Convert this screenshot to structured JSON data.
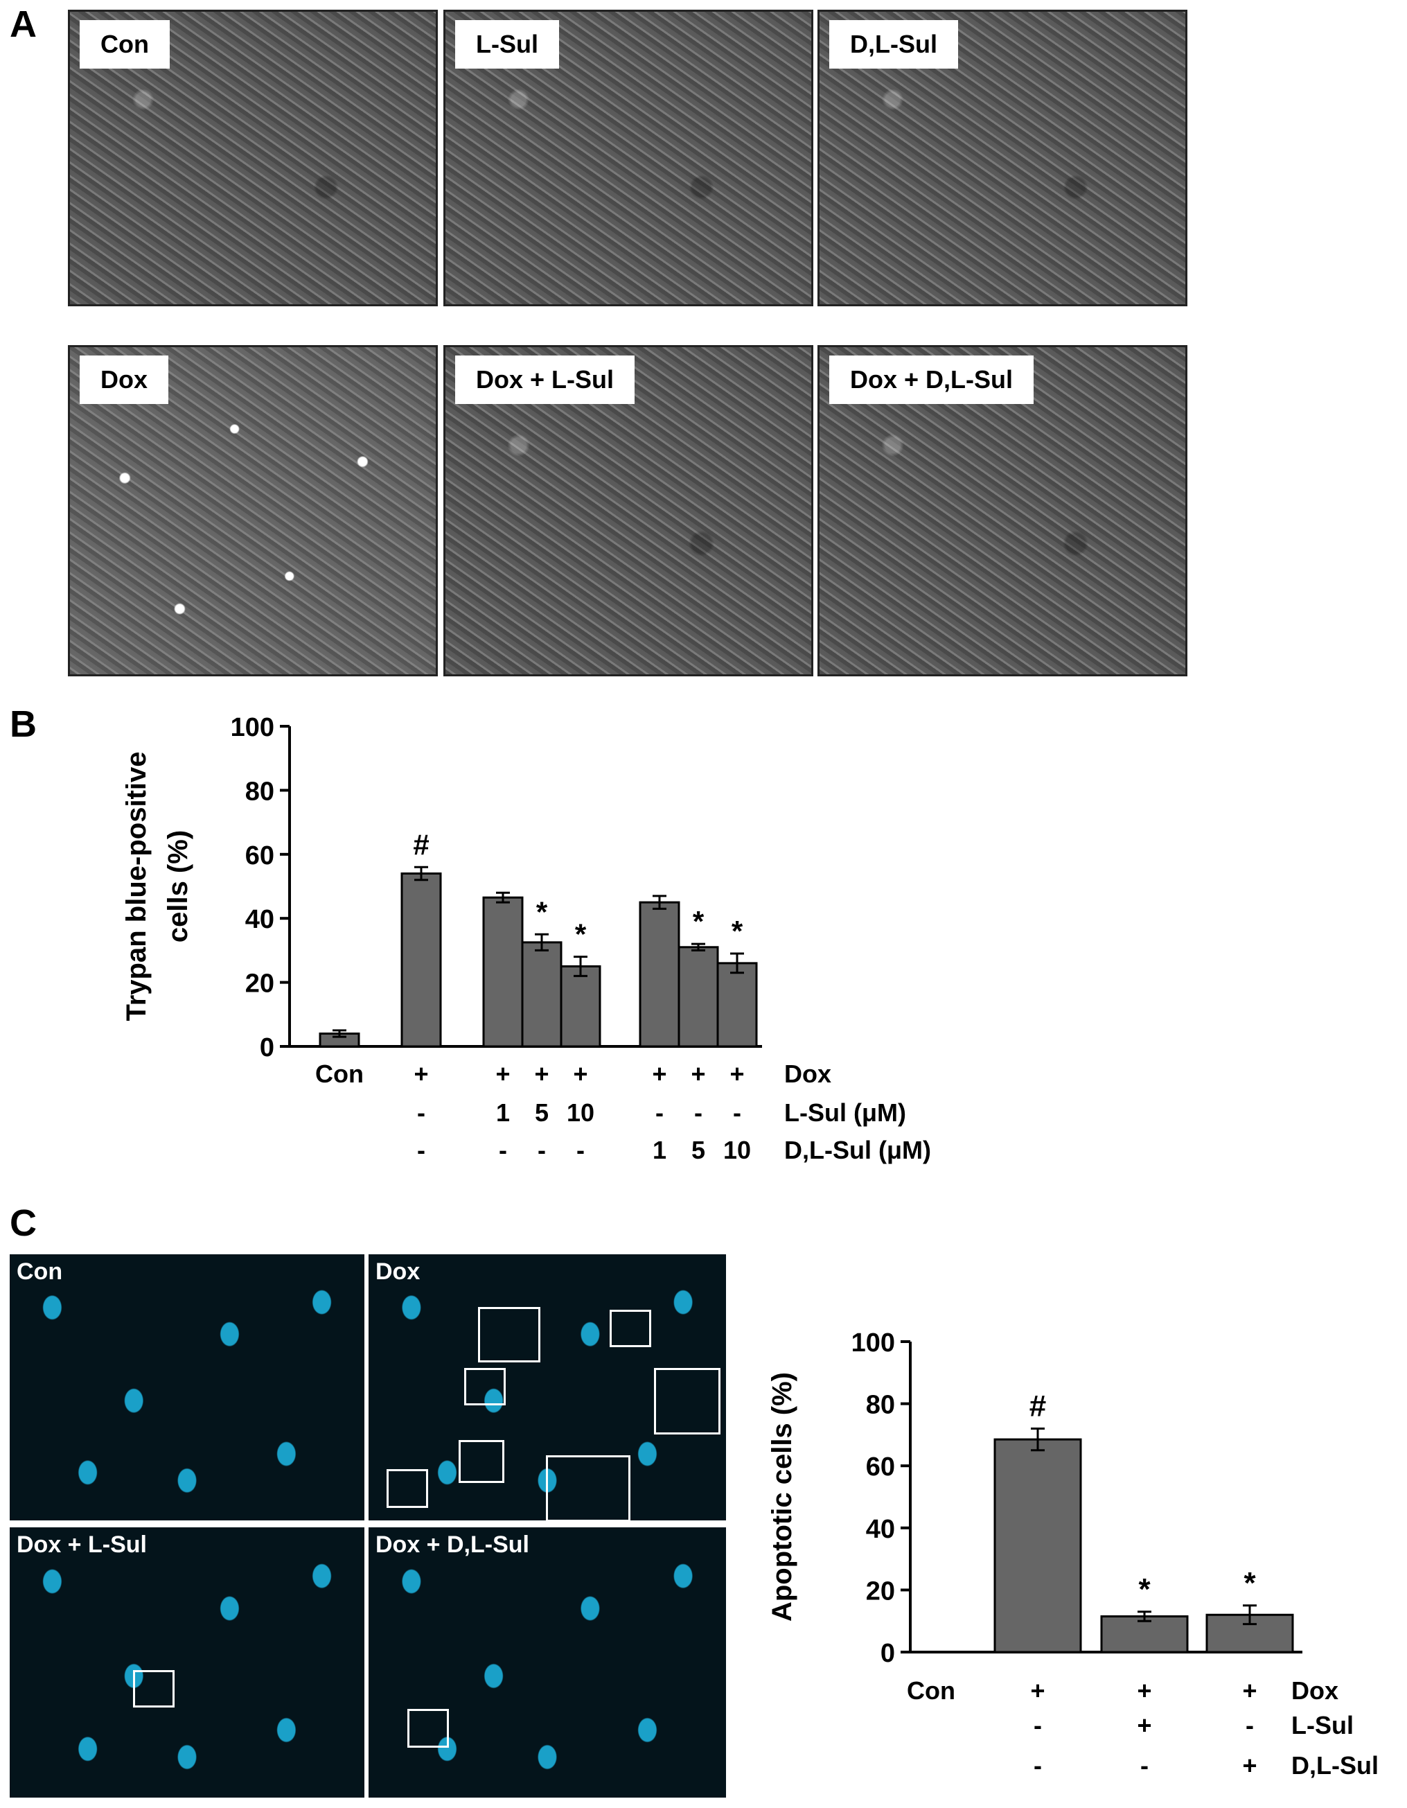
{
  "panels": {
    "a": "A",
    "b": "B",
    "c": "C"
  },
  "micrographs_a": [
    "Con",
    "L-Sul",
    "D,L-Sul",
    "Dox",
    "Dox + L-Sul",
    "Dox + D,L-Sul"
  ],
  "micrographs_c": [
    "Con",
    "Dox",
    "Dox + L-Sul",
    "Dox + D,L-Sul"
  ],
  "chart_data": [
    {
      "type": "bar",
      "ylabel_line1": "Trypan blue-positive",
      "ylabel_line2": "cells (%)",
      "ylim": [
        0,
        100
      ],
      "yticks": [
        0,
        20,
        40,
        60,
        80,
        100
      ],
      "values": [
        4,
        54,
        46.5,
        32.5,
        25,
        45,
        31,
        26
      ],
      "errors": [
        1,
        2,
        1.5,
        2.5,
        3,
        2,
        1,
        3
      ],
      "marks": [
        "",
        "#",
        "",
        "*",
        "*",
        "",
        "*",
        "*"
      ],
      "condition_rows": [
        {
          "label": "Dox",
          "cells": [
            "Con",
            "+",
            "+",
            "+",
            "+",
            "+",
            "+",
            "+"
          ]
        },
        {
          "label": "L-Sul (μM)",
          "cells": [
            "",
            "-",
            "1",
            "5",
            "10",
            "-",
            "-",
            "-"
          ]
        },
        {
          "label": "D,L-Sul (μM)",
          "cells": [
            "",
            "-",
            "-",
            "-",
            "-",
            "1",
            "5",
            "10"
          ]
        }
      ]
    },
    {
      "type": "bar",
      "ylabel": "Apoptotic cells (%)",
      "ylim": [
        0,
        100
      ],
      "yticks": [
        0,
        20,
        40,
        60,
        80,
        100
      ],
      "values": [
        0,
        68.5,
        11.5,
        12
      ],
      "errors": [
        0,
        3.5,
        1.5,
        3
      ],
      "marks": [
        "",
        "#",
        "*",
        "*"
      ],
      "condition_rows": [
        {
          "label": "Dox",
          "cells": [
            "Con",
            "+",
            "+",
            "+"
          ]
        },
        {
          "label": "L-Sul",
          "cells": [
            "",
            "-",
            "+",
            "-"
          ]
        },
        {
          "label": "D,L-Sul",
          "cells": [
            "",
            "-",
            "-",
            "+"
          ]
        }
      ]
    }
  ]
}
